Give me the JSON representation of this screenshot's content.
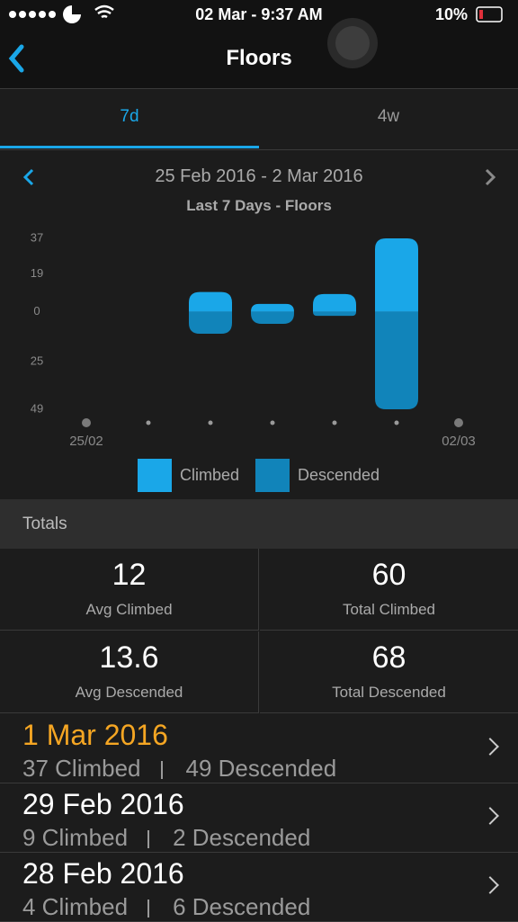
{
  "status_bar": {
    "time": "02 Mar - 9:37 AM",
    "battery": "10%"
  },
  "header": {
    "title": "Floors"
  },
  "tabs": [
    "7d",
    "4w"
  ],
  "range": "25 Feb 2016 - 2 Mar 2016",
  "chart_data": {
    "type": "diverging-bar",
    "title": "Last 7 Days - Floors",
    "categories": [
      "25/02",
      null,
      null,
      null,
      null,
      null,
      "02/03"
    ],
    "series": [
      {
        "name": "Climbed",
        "color": "#1aa7e8",
        "values": [
          0,
          0,
          10,
          4,
          9,
          37,
          0
        ]
      },
      {
        "name": "Descended",
        "color": "#1184ba",
        "values": [
          0,
          0,
          -11,
          -6,
          -2,
          -49,
          0
        ]
      }
    ],
    "ylim": [
      -49,
      37
    ],
    "yticks": [
      37,
      19,
      0,
      {
        "value": -25,
        "label": "25"
      },
      {
        "value": -49,
        "label": "49"
      }
    ],
    "grid": false,
    "legend": "bottom"
  },
  "totals": {
    "title": "Totals",
    "stats": [
      {
        "value": 12,
        "label": "Avg Climbed"
      },
      {
        "value": 60,
        "label": "Total Climbed"
      },
      {
        "value": 13.6,
        "label": "Avg Descended"
      },
      {
        "value": 68,
        "label": "Total Descended"
      }
    ]
  },
  "days": [
    {
      "date": "1 Mar 2016",
      "climbed": "37 Climbed",
      "descended": "49 Descended"
    },
    {
      "date": "29 Feb 2016",
      "climbed": "9 Climbed",
      "descended": "2 Descended"
    },
    {
      "date": "28 Feb 2016",
      "climbed": "4 Climbed",
      "descended": "6 Descended"
    }
  ]
}
